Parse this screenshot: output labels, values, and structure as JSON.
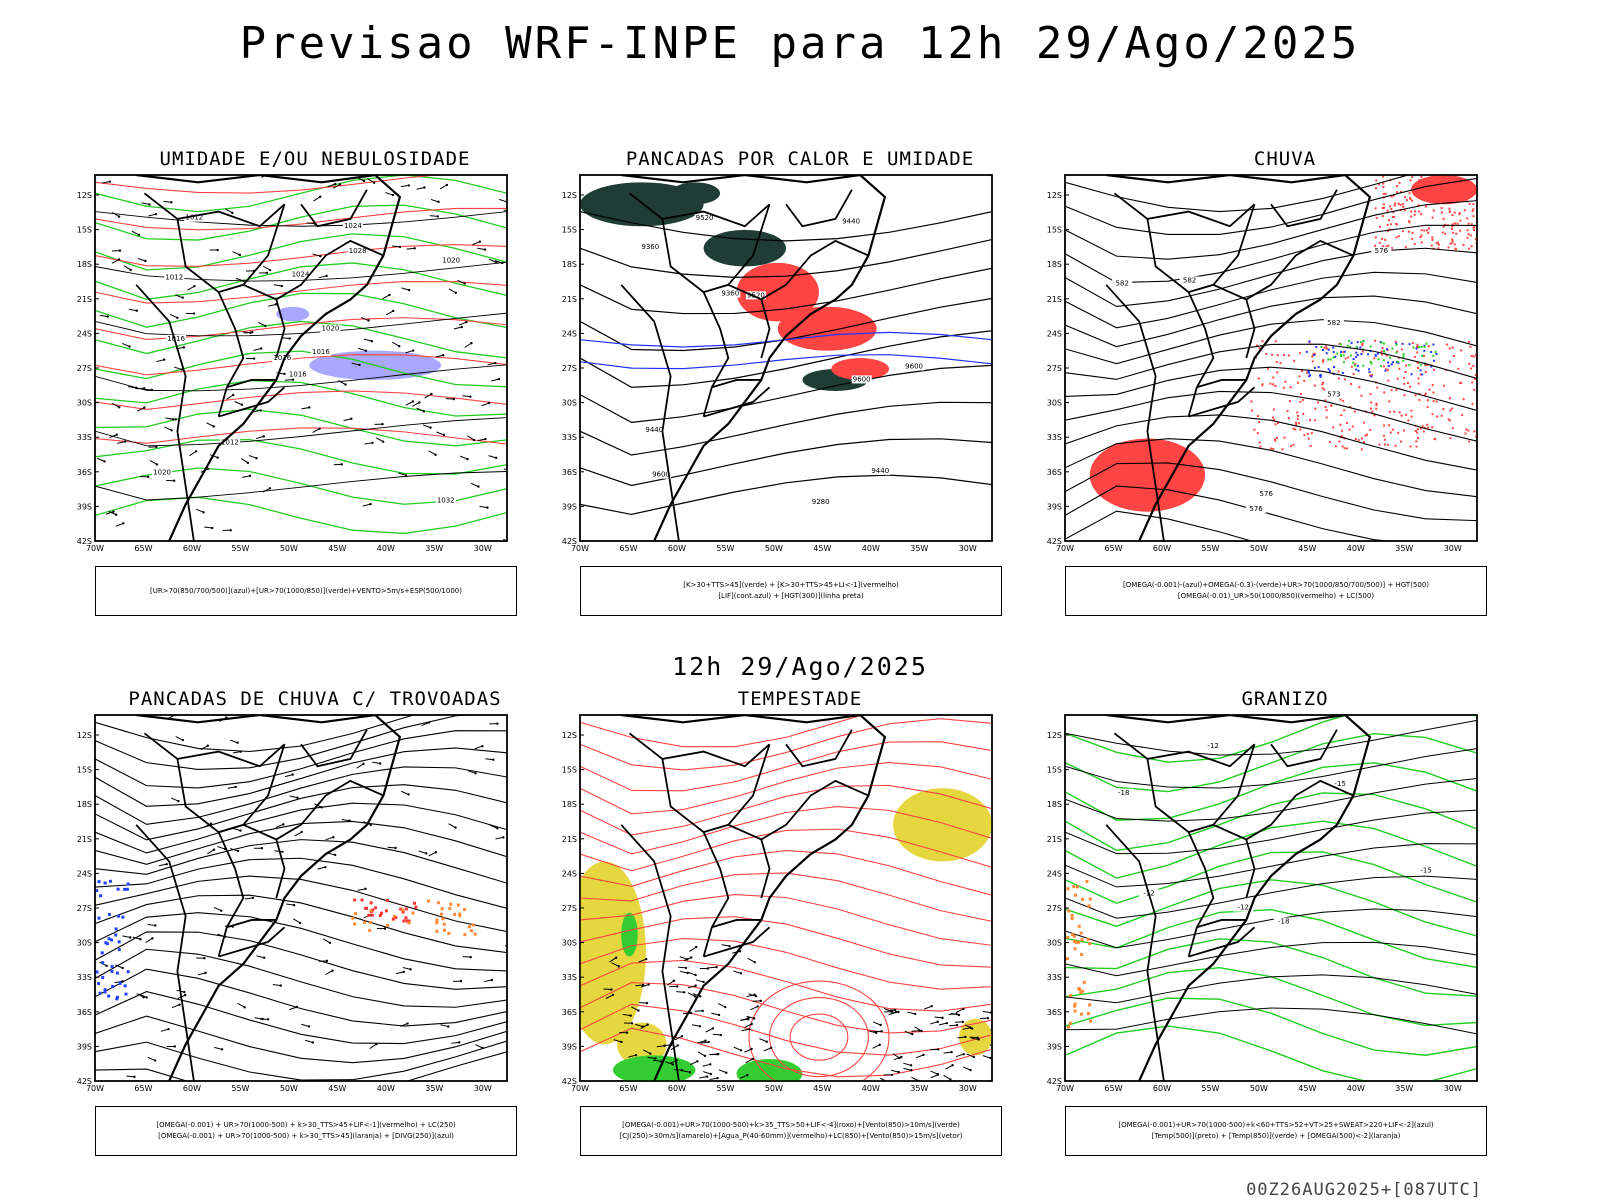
{
  "header": {
    "title": "Previsao WRF-INPE  para 12h 29/Ago/2025"
  },
  "middle_title": "12h 29/Ago/2025",
  "footer": "00Z26AUG2025+[087UTC]",
  "axes": {
    "lat_labels": [
      "12S",
      "15S",
      "18S",
      "21S",
      "24S",
      "27S",
      "30S",
      "33S",
      "36S",
      "39S",
      "42S"
    ],
    "lon_labels": [
      "70W",
      "65W",
      "60W",
      "55W",
      "50W",
      "45W",
      "40W",
      "35W",
      "30W"
    ]
  },
  "panels": [
    {
      "title": "UMIDADE E/OU NEBULOSIDADE",
      "legend": [
        "[UR>70(850/700/500)](azul)+[UR>70(1000/850)](verde)+VENTO>5m/s+ESP(500/1000)"
      ],
      "contour_labels": [
        "1016",
        "1012",
        "1016",
        "1020",
        "1020",
        "1012",
        "1024",
        "1024",
        "1028",
        "1016",
        "1012",
        "1032",
        "1016",
        "1020"
      ]
    },
    {
      "title": "PANCADAS POR CALOR E UMIDADE",
      "legend": [
        "[K>30+TTS>45](verde) + [K>30+TTS>45+LI<-1](vermelho)",
        "[LIF](cont.azul) + [HGT(300)](linha preta)"
      ],
      "contour_labels": [
        "9600",
        "9600",
        "9600",
        "9520",
        "9520",
        "9440",
        "9440",
        "9440",
        "9360",
        "9280",
        "9360"
      ]
    },
    {
      "title": "CHUVA",
      "legend": [
        "[OMEGA(-0.001)-(azul)+OMEGA(-0.3)-(verde)+UR>70(1000/850/700/500)] + HGT(500)",
        "[OMEGA(-0.01)_UR>50(1000/850)(vermelho) + LC(500)"
      ],
      "contour_labels": [
        "582",
        "582",
        "582",
        "576",
        "576",
        "576",
        "573"
      ]
    },
    {
      "title": "PANCADAS DE CHUVA C/ TROVOADAS",
      "legend": [
        "[OMEGA(-0.001) + UR>70(1000-500) + k>30_TTS>45+LIF<-1](vermelho) + LC(250)",
        "[OMEGA(-0.001) + UR>70(1000-500) + k>30_TTS>45](laranja) + [DIVG(250)](azul)"
      ],
      "contour_labels": []
    },
    {
      "title": "TEMPESTADE",
      "legend": [
        "[OMEGA(-0.001)+UR>70(1000-500)+k>35_TTS>50+LIF<-4](roxo)+[Vento(850)>10m/s](verde)",
        "[CJ(250)>30m/s](amarelo)+[Agua_P(40-60mm)](vermelho)+LC(850)+[Vento(850)>15m/s](vetor)"
      ],
      "contour_labels": []
    },
    {
      "title": "GRANIZO",
      "legend": [
        "[OMEGA(-0.001)+UR>70(1000-500)+k<60+TTS>52+VT>25+SWEAT>220+LIF<-2](azul)",
        "[Temp(500)](preto) + [Temp(850)](verde) + [OMEGA(500)<-2](laranja)"
      ],
      "contour_labels": [
        "-12",
        "-15",
        "-15",
        "-12",
        "-18",
        "-12",
        "-18"
      ]
    }
  ]
}
